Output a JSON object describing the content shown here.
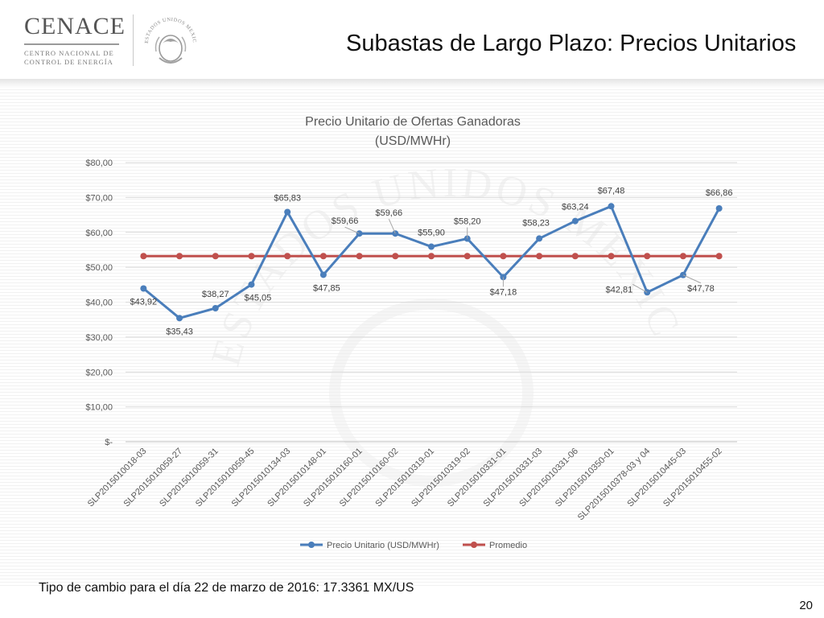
{
  "header": {
    "logo_name": "CENACE",
    "logo_line1": "CENTRO NACIONAL DE",
    "logo_line2": "CONTROL DE ENERGÍA",
    "seal_text": "ESTADOS UNIDOS MEXICANOS",
    "title": "Subastas de Largo Plazo: Precios Unitarios"
  },
  "footnote": "Tipo de cambio para el día 22 de marzo de 2016: 17.3361 MX/US",
  "page_number": "20",
  "watermark_text": "ESTADOS UNIDOS MEXICANOS",
  "chart_data": {
    "type": "line",
    "title_line1": "Precio Unitario de Ofertas Ganadoras",
    "title_line2": "(USD/MWHr)",
    "categories": [
      "SLP2015010018-03",
      "SLP2015010059-27",
      "SLP2015010059-31",
      "SLP2015010059-45",
      "SLP2015010134-03",
      "SLP2015010148-01",
      "SLP2015010160-01",
      "SLP2015010160-02",
      "SLP2015010319-01",
      "SLP2015010319-02",
      "SLP2015010331-01",
      "SLP2015010331-03",
      "SLP2015010331-06",
      "SLP2015010350-01",
      "SLP2015010378-03 y 04",
      "SLP2015010445-03",
      "SLP2015010455-02"
    ],
    "yticks": [
      0,
      10,
      20,
      30,
      40,
      50,
      60,
      70,
      80
    ],
    "ytick_labels": [
      "$-",
      "$10,00",
      "$20,00",
      "$30,00",
      "$40,00",
      "$50,00",
      "$60,00",
      "$70,00",
      "$80,00"
    ],
    "ylim": [
      0,
      80
    ],
    "grid": true,
    "legend_position": "bottom",
    "series": [
      {
        "name": "Precio Unitario (USD/MWHr)",
        "color": "#4a7ebb",
        "values": [
          43.92,
          35.43,
          38.27,
          45.05,
          65.83,
          47.85,
          59.66,
          59.66,
          55.9,
          58.2,
          47.18,
          58.23,
          63.24,
          67.48,
          42.81,
          47.78,
          66.86
        ],
        "labels": [
          "$43,92",
          "$35,43",
          "$38,27",
          "$45,05",
          "$65,83",
          "$47,85",
          "$59,66",
          "$59,66",
          "$55,90",
          "$58,20",
          "$47,18",
          "$58,23",
          "$63,24",
          "$67,48",
          "$42,81",
          "$47,78",
          "$66,86"
        ]
      },
      {
        "name": "Promedio",
        "color": "#c0504d",
        "values": [
          53.2,
          53.2,
          53.2,
          53.2,
          53.2,
          53.2,
          53.2,
          53.2,
          53.2,
          53.2,
          53.2,
          53.2,
          53.2,
          53.2,
          53.2,
          53.2,
          53.2
        ]
      }
    ]
  }
}
